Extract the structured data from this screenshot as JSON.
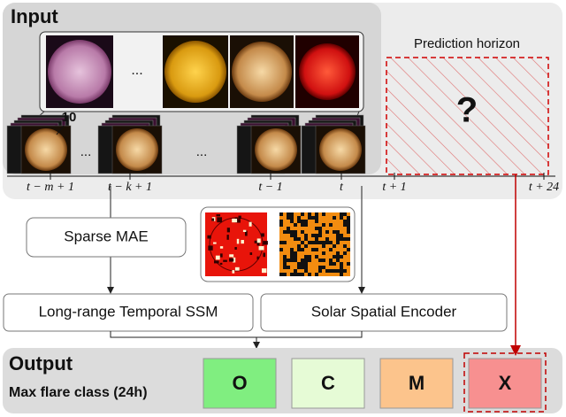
{
  "input": {
    "title": "Input",
    "channel_count": "10",
    "ellipses": [
      "...",
      "...",
      "..."
    ]
  },
  "prediction": {
    "title": "Prediction horizon",
    "mark": "?"
  },
  "timeline": {
    "labels": [
      "t − m + 1",
      "t − k + 1",
      "t − 1",
      "t",
      "t + 1",
      "t + 24"
    ]
  },
  "modules": {
    "mae": "Sparse MAE",
    "ssm": "Long-range Temporal SSM",
    "encoder": "Solar Spatial Encoder"
  },
  "output": {
    "title": "Output",
    "subtitle": "Max flare class (24h)",
    "classes": [
      "O",
      "C",
      "M",
      "X"
    ]
  }
}
